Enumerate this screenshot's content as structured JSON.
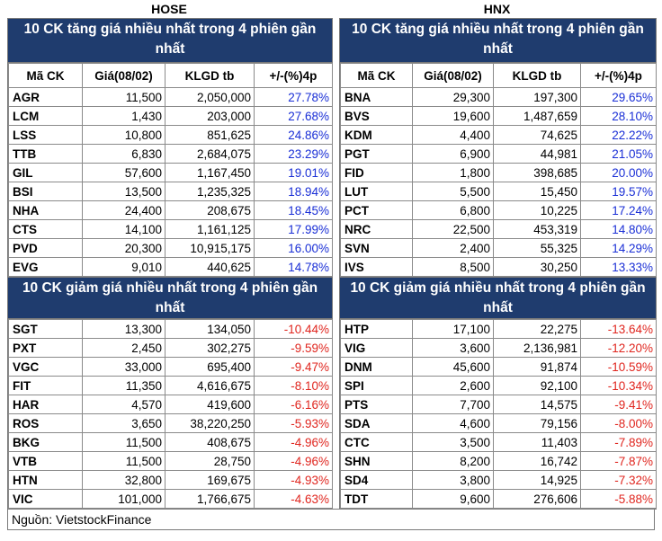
{
  "exchanges": {
    "left": "HOSE",
    "right": "HNX"
  },
  "gain_title": {
    "hose": "10 CK tăng giá nhiều nhất trong 4 phiên gần nhất",
    "hnx": "10 CK tăng giá nhiều nhất trong 4 phiên gần nhất"
  },
  "loss_title": {
    "hose": "10 CK giảm giá nhiều nhất trong 4 phiên gần nhất",
    "hnx": "10 CK giảm giá nhiều nhất trong 4 phiên gần nhất"
  },
  "columns": [
    "Mã CK",
    "Giá(08/02)",
    "KLGD tb",
    "+/-(%)4p"
  ],
  "hose_gainers": [
    [
      "AGR",
      "11,500",
      "2,050,000",
      "27.78%"
    ],
    [
      "LCM",
      "1,430",
      "203,000",
      "27.68%"
    ],
    [
      "LSS",
      "10,800",
      "851,625",
      "24.86%"
    ],
    [
      "TTB",
      "6,830",
      "2,684,075",
      "23.29%"
    ],
    [
      "GIL",
      "57,600",
      "1,167,450",
      "19.01%"
    ],
    [
      "BSI",
      "13,500",
      "1,235,325",
      "18.94%"
    ],
    [
      "NHA",
      "24,400",
      "208,675",
      "18.45%"
    ],
    [
      "CTS",
      "14,100",
      "1,161,125",
      "17.99%"
    ],
    [
      "PVD",
      "20,300",
      "10,915,175",
      "16.00%"
    ],
    [
      "EVG",
      "9,010",
      "440,625",
      "14.78%"
    ]
  ],
  "hnx_gainers": [
    [
      "BNA",
      "29,300",
      "197,300",
      "29.65%"
    ],
    [
      "BVS",
      "19,600",
      "1,487,659",
      "28.10%"
    ],
    [
      "KDM",
      "4,400",
      "74,625",
      "22.22%"
    ],
    [
      "PGT",
      "6,900",
      "44,981",
      "21.05%"
    ],
    [
      "FID",
      "1,800",
      "398,685",
      "20.00%"
    ],
    [
      "LUT",
      "5,500",
      "15,450",
      "19.57%"
    ],
    [
      "PCT",
      "6,800",
      "10,225",
      "17.24%"
    ],
    [
      "NRC",
      "22,500",
      "453,319",
      "14.80%"
    ],
    [
      "SVN",
      "2,400",
      "55,325",
      "14.29%"
    ],
    [
      "IVS",
      "8,500",
      "30,250",
      "13.33%"
    ]
  ],
  "hose_losers": [
    [
      "SGT",
      "13,300",
      "134,050",
      "-10.44%"
    ],
    [
      "PXT",
      "2,450",
      "302,275",
      "-9.59%"
    ],
    [
      "VGC",
      "33,000",
      "695,400",
      "-9.47%"
    ],
    [
      "FIT",
      "11,350",
      "4,616,675",
      "-8.10%"
    ],
    [
      "HAR",
      "4,570",
      "419,600",
      "-6.16%"
    ],
    [
      "ROS",
      "3,650",
      "38,220,250",
      "-5.93%"
    ],
    [
      "BKG",
      "11,500",
      "408,675",
      "-4.96%"
    ],
    [
      "VTB",
      "11,500",
      "28,750",
      "-4.96%"
    ],
    [
      "HTN",
      "32,800",
      "169,675",
      "-4.93%"
    ],
    [
      "VIC",
      "101,000",
      "1,766,675",
      "-4.63%"
    ]
  ],
  "hnx_losers": [
    [
      "HTP",
      "17,100",
      "22,275",
      "-13.64%"
    ],
    [
      "VIG",
      "3,600",
      "2,136,981",
      "-12.20%"
    ],
    [
      "DNM",
      "45,600",
      "91,874",
      "-10.59%"
    ],
    [
      "SPI",
      "2,600",
      "92,100",
      "-10.34%"
    ],
    [
      "PTS",
      "7,700",
      "14,575",
      "-9.41%"
    ],
    [
      "SDA",
      "4,600",
      "79,156",
      "-8.00%"
    ],
    [
      "CTC",
      "3,500",
      "11,403",
      "-7.89%"
    ],
    [
      "SHN",
      "8,200",
      "16,742",
      "-7.87%"
    ],
    [
      "SD4",
      "3,800",
      "14,925",
      "-7.32%"
    ],
    [
      "TDT",
      "9,600",
      "276,606",
      "-5.88%"
    ]
  ],
  "source": "Nguồn: VietstockFinance",
  "colors": {
    "header_bg": "#1f3c6e",
    "gain": "#1a2fd6",
    "loss": "#e0261f"
  }
}
